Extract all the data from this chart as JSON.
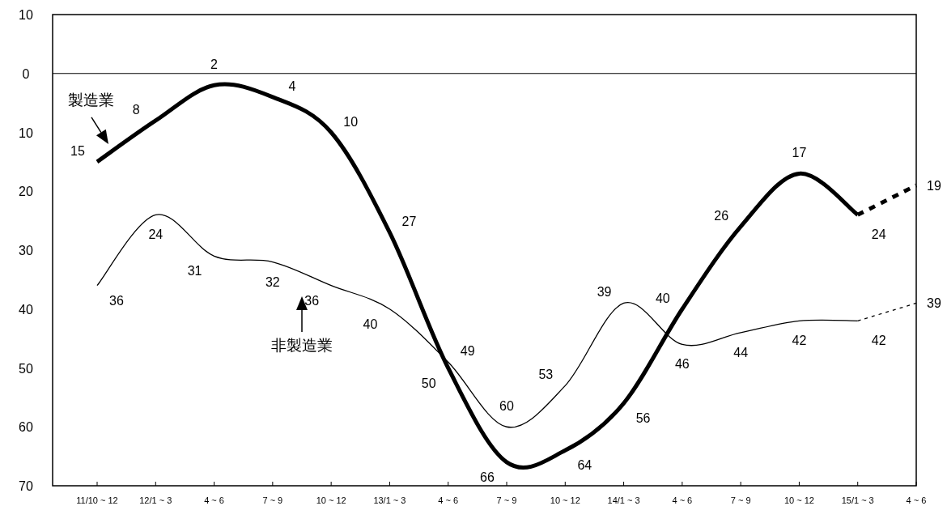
{
  "chart_data": {
    "type": "line",
    "categories": [
      "11/10 ~ 12",
      "12/1 ~ 3",
      "4 ~ 6",
      "7 ~ 9",
      "10 ~ 12",
      "13/1 ~ 3",
      "4 ~ 6",
      "7 ~ 9",
      "10 ~ 12",
      "14/1 ~ 3",
      "4 ~ 6",
      "7 ~ 9",
      "10 ~ 12",
      "15/1 ~ 3",
      "4 ~ 6"
    ],
    "series": [
      {
        "name": "製造業",
        "color": "#000000",
        "line_style": "solid",
        "values": [
          15,
          8,
          2,
          4,
          10,
          27,
          50,
          66,
          64,
          56,
          40,
          26,
          17,
          24,
          null
        ],
        "value_labels": [
          "15",
          "8",
          "2",
          "4",
          "10",
          "27",
          "50",
          "66",
          "64",
          "56",
          "40",
          "26",
          "17",
          "24",
          null
        ]
      },
      {
        "name": "非製造業",
        "color": "#000000",
        "line_style": "solid",
        "values": [
          36,
          24,
          31,
          32,
          36,
          40,
          49,
          60,
          53,
          39,
          46,
          44,
          42,
          42,
          null
        ],
        "value_labels": [
          "36",
          "24",
          "31",
          "32",
          "36",
          "40",
          "49",
          "60",
          "53",
          "39",
          "46",
          "44",
          "42",
          "42",
          null
        ]
      },
      {
        "color": "#000000",
        "line_style": "dashed",
        "values": [
          null,
          null,
          null,
          null,
          null,
          null,
          null,
          null,
          null,
          null,
          null,
          null,
          null,
          24,
          19
        ],
        "value_labels": [
          null,
          null,
          null,
          null,
          null,
          null,
          null,
          null,
          null,
          null,
          null,
          null,
          null,
          null,
          "19"
        ]
      },
      {
        "color": "#000000",
        "line_style": "dashed",
        "values": [
          null,
          null,
          null,
          null,
          null,
          null,
          null,
          null,
          null,
          null,
          null,
          null,
          null,
          42,
          39
        ],
        "value_labels": [
          null,
          null,
          null,
          null,
          null,
          null,
          null,
          null,
          null,
          null,
          null,
          null,
          null,
          null,
          "39"
        ]
      }
    ],
    "ylim": [
      70,
      -10
    ],
    "yticks": [
      {
        "value": -10,
        "label": "10"
      },
      0,
      10,
      20,
      30,
      40,
      50,
      60,
      70
    ],
    "ref_lines": [
      {
        "axis": "y",
        "value": 0,
        "color": "#000000"
      }
    ]
  }
}
